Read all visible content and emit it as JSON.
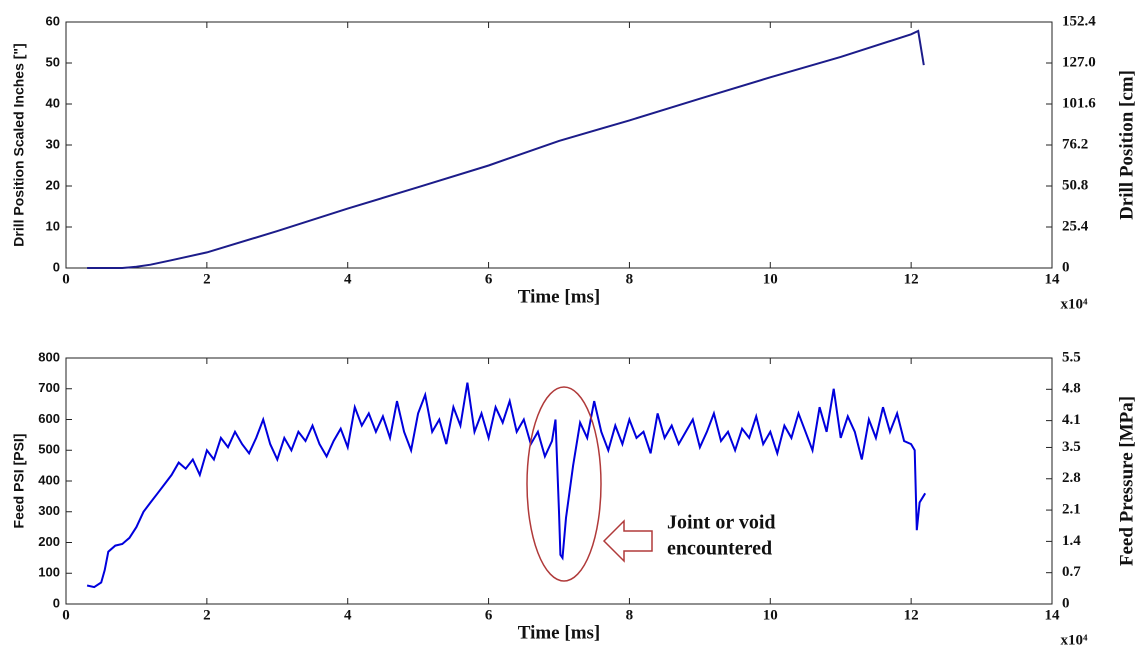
{
  "chart_data": [
    {
      "type": "line",
      "x_label": "Time [ms]",
      "x_multiplier": "x10⁴",
      "y_label": "Drill Position Scaled Inches [\"]",
      "y2_label": "Drill Position [cm]",
      "xlim": [
        0,
        14
      ],
      "xticks": [
        0,
        2,
        4,
        6,
        8,
        10,
        12,
        14
      ],
      "ylim": [
        0,
        60
      ],
      "yticks": [
        0,
        10,
        20,
        30,
        40,
        50,
        60
      ],
      "y2lim": [
        0,
        152.4
      ],
      "y2ticks": [
        0,
        25.4,
        50.8,
        76.2,
        101.6,
        {
          "value": 127,
          "label": "127.0"
        },
        152.4
      ],
      "color": "#1c1c8a",
      "x": [
        0.3,
        0.8,
        1.0,
        1.2,
        1.5,
        2,
        3,
        4,
        5,
        6,
        7,
        8,
        9,
        10,
        11,
        12,
        12.1,
        12.18
      ],
      "values": [
        0,
        0,
        0.3,
        0.8,
        1.9,
        3.8,
        9,
        14.5,
        19.7,
        25,
        31,
        36,
        41.3,
        46.5,
        51.5,
        57,
        57.8,
        49.5
      ]
    },
    {
      "type": "line",
      "x_label": "Time [ms]",
      "x_multiplier": "x10⁴",
      "y_label": "Feed PSI [PSI]",
      "y2_label": "Feed Pressure [MPa]",
      "annotation": [
        "Joint or void",
        "encountered"
      ],
      "xlim": [
        0,
        14
      ],
      "xticks": [
        0,
        2,
        4,
        6,
        8,
        10,
        12,
        14
      ],
      "ylim": [
        0,
        800
      ],
      "yticks": [
        0,
        100,
        200,
        300,
        400,
        500,
        600,
        700,
        800
      ],
      "y2lim": [
        0,
        5.5
      ],
      "y2ticks": [
        0,
        0.7,
        1.4,
        2.1,
        2.8,
        3.5,
        4.1,
        4.8,
        5.5
      ],
      "color": "#0000dd",
      "x": [
        0.3,
        0.4,
        0.5,
        0.55,
        0.6,
        0.7,
        0.8,
        0.9,
        1.0,
        1.1,
        1.2,
        1.3,
        1.4,
        1.5,
        1.6,
        1.7,
        1.8,
        1.9,
        2.0,
        2.1,
        2.2,
        2.3,
        2.4,
        2.5,
        2.6,
        2.7,
        2.8,
        2.9,
        3.0,
        3.1,
        3.2,
        3.3,
        3.4,
        3.5,
        3.6,
        3.7,
        3.8,
        3.9,
        4.0,
        4.1,
        4.2,
        4.3,
        4.4,
        4.5,
        4.6,
        4.7,
        4.8,
        4.9,
        5.0,
        5.1,
        5.2,
        5.3,
        5.4,
        5.5,
        5.6,
        5.7,
        5.8,
        5.9,
        6.0,
        6.1,
        6.2,
        6.3,
        6.4,
        6.5,
        6.6,
        6.7,
        6.8,
        6.9,
        6.95,
        7.0,
        7.02,
        7.05,
        7.1,
        7.2,
        7.3,
        7.4,
        7.5,
        7.6,
        7.7,
        7.8,
        7.9,
        8.0,
        8.1,
        8.2,
        8.3,
        8.4,
        8.5,
        8.6,
        8.7,
        8.8,
        8.9,
        9.0,
        9.1,
        9.2,
        9.3,
        9.4,
        9.5,
        9.6,
        9.7,
        9.8,
        9.9,
        10.0,
        10.1,
        10.2,
        10.3,
        10.4,
        10.5,
        10.6,
        10.7,
        10.8,
        10.9,
        11.0,
        11.1,
        11.2,
        11.3,
        11.4,
        11.5,
        11.6,
        11.7,
        11.8,
        11.9,
        12.0,
        12.05,
        12.08,
        12.12,
        12.2
      ],
      "values": [
        60,
        55,
        70,
        110,
        170,
        190,
        195,
        215,
        250,
        300,
        330,
        360,
        390,
        420,
        460,
        440,
        470,
        420,
        500,
        470,
        540,
        510,
        560,
        520,
        490,
        540,
        600,
        520,
        470,
        540,
        500,
        560,
        530,
        580,
        520,
        480,
        530,
        570,
        510,
        640,
        580,
        620,
        560,
        610,
        540,
        660,
        560,
        500,
        620,
        680,
        560,
        600,
        520,
        640,
        580,
        720,
        560,
        620,
        540,
        640,
        590,
        660,
        560,
        600,
        520,
        560,
        480,
        530,
        600,
        300,
        160,
        150,
        280,
        450,
        590,
        540,
        660,
        560,
        500,
        580,
        520,
        600,
        540,
        560,
        490,
        620,
        540,
        580,
        520,
        560,
        600,
        510,
        560,
        620,
        530,
        560,
        500,
        570,
        540,
        610,
        520,
        560,
        490,
        580,
        540,
        620,
        560,
        500,
        640,
        560,
        700,
        540,
        610,
        560,
        470,
        600,
        540,
        640,
        560,
        620,
        530,
        520,
        500,
        240,
        330,
        360
      ]
    }
  ]
}
